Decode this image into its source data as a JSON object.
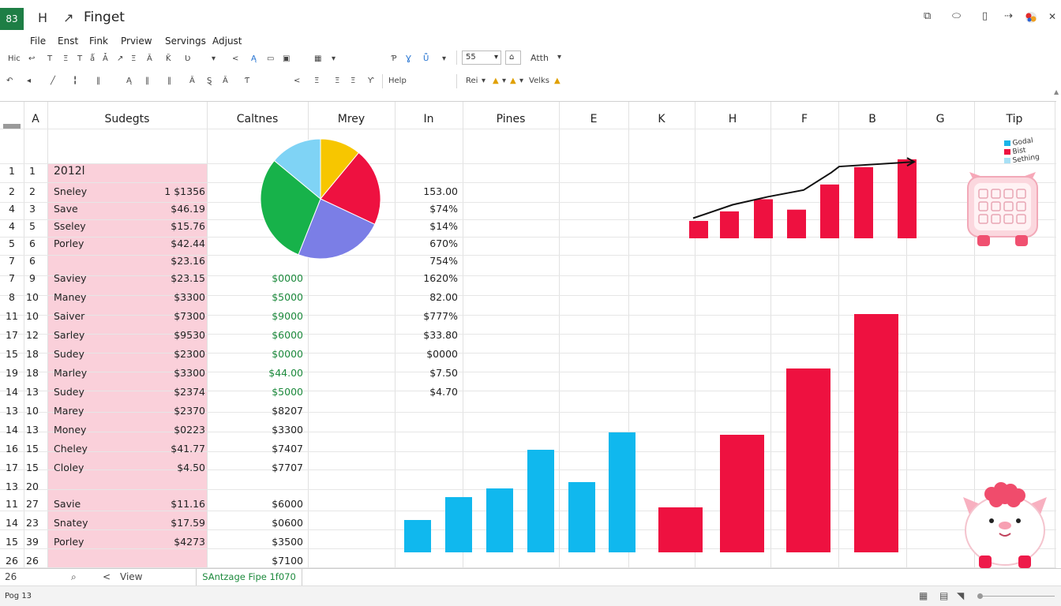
{
  "app": {
    "logo_text": "83",
    "title": "Finget"
  },
  "menu": [
    "File",
    "Enst",
    "Fink",
    "Prview",
    "Servings",
    "Adjust"
  ],
  "ribbon": {
    "row1": [
      "Hic",
      "↩",
      "T",
      "Ξ",
      "T",
      "ǻ",
      "Ǡ",
      "↗",
      "Ξ",
      "Ǎ",
      "Ǩ",
      "Ʋ",
      "▾",
      "<",
      "Ą",
      "▭",
      "▣",
      "▦",
      "▾",
      "Ƥ",
      "Ɣ",
      "Ǖ",
      "▾"
    ],
    "font_size": "55",
    "row1_right": "Atth",
    "row2": [
      "↶",
      "◂",
      "╱",
      "╏",
      "‖",
      "Ą",
      "‖",
      "‖",
      "Ǎ",
      "Ȿ",
      "Ǎ",
      "Ƭ",
      "<",
      "Ξ",
      "Ξ",
      "Ξ",
      "Ƴ"
    ],
    "help_label": "Help",
    "row2_right": [
      "Rei",
      "Velks"
    ]
  },
  "columns": [
    "A",
    "Sudegts",
    "Caltnes",
    "Mrey",
    "In",
    "Pines",
    "E",
    "K",
    "H",
    "F",
    "B",
    "G",
    "Tip"
  ],
  "rows": [
    {
      "num": "1",
      "a": "1",
      "b_name": "2012l",
      "b_val": "",
      "c": "",
      "e": ""
    },
    {
      "num": "2",
      "a": "2",
      "b_name": "Sneley",
      "b_val": "1 $1356",
      "c": "",
      "e": "153.00"
    },
    {
      "num": "4",
      "a": "3",
      "b_name": "Save",
      "b_val": "$46.19",
      "c": "",
      "e": "$74%"
    },
    {
      "num": "4",
      "a": "5",
      "b_name": "Sseley",
      "b_val": "$15.76",
      "c": "",
      "e": "$14%"
    },
    {
      "num": "5",
      "a": "6",
      "b_name": "Porley",
      "b_val": "$42.44",
      "c": "",
      "e": "670%"
    },
    {
      "num": "7",
      "a": "6",
      "b_name": "",
      "b_val": "$23.16",
      "c": "",
      "e": "754%"
    },
    {
      "num": "7",
      "a": "9",
      "b_name": "Saviey",
      "b_val": "$23.15",
      "c": "$0000",
      "e": "1620%"
    },
    {
      "num": "8",
      "a": "10",
      "b_name": "Maney",
      "b_val": "$3300",
      "c": "$5000",
      "e": "82.00"
    },
    {
      "num": "11",
      "a": "10",
      "b_name": "Saiver",
      "b_val": "$7300",
      "c": "$9000",
      "e": "$777%"
    },
    {
      "num": "17",
      "a": "12",
      "b_name": "Sarley",
      "b_val": "$9530",
      "c": "$6000",
      "e": "$33.80"
    },
    {
      "num": "15",
      "a": "18",
      "b_name": "Sudey",
      "b_val": "$2300",
      "c": "$0000",
      "e": "$0000"
    },
    {
      "num": "19",
      "a": "18",
      "b_name": "Marley",
      "b_val": "$3300",
      "c": "$44.00",
      "e": "$7.50"
    },
    {
      "num": "14",
      "a": "13",
      "b_name": "Sudey",
      "b_val": "$2374",
      "c": "$5000",
      "e": "$4.70"
    },
    {
      "num": "13",
      "a": "10",
      "b_name": "Marey",
      "b_val": "$2370",
      "c": "$8207",
      "e": ""
    },
    {
      "num": "14",
      "a": "13",
      "b_name": "Money",
      "b_val": "$0223",
      "c": "$3300",
      "e": ""
    },
    {
      "num": "16",
      "a": "15",
      "b_name": "Cheley",
      "b_val": "$41.77",
      "c": "$7407",
      "e": ""
    },
    {
      "num": "17",
      "a": "15",
      "b_name": "Cloley",
      "b_val": "$4.50",
      "c": "$7707",
      "e": ""
    },
    {
      "num": "13",
      "a": "20",
      "b_name": "",
      "b_val": "",
      "c": "",
      "e": ""
    },
    {
      "num": "11",
      "a": "27",
      "b_name": "Savie",
      "b_val": "$11.16",
      "c": "$6000",
      "e": ""
    },
    {
      "num": "14",
      "a": "23",
      "b_name": "Snatey",
      "b_val": "$17.59",
      "c": "$0600",
      "e": ""
    },
    {
      "num": "15",
      "a": "39",
      "b_name": "Porley",
      "b_val": "$4273",
      "c": "$3500",
      "e": ""
    },
    {
      "num": "26",
      "a": "26",
      "b_name": "",
      "b_val": "",
      "c": "$7100",
      "e": ""
    }
  ],
  "pie": {
    "slices": [
      {
        "value": 11,
        "color": "#f7c600"
      },
      {
        "value": 21,
        "color": "#ee1140"
      },
      {
        "value": 24,
        "color": "#7b7ee6"
      },
      {
        "value": 30,
        "color": "#17b24a"
      },
      {
        "value": 14,
        "color": "#7fd3f5"
      }
    ]
  },
  "top_chart": {
    "bars": [
      20,
      31,
      45,
      33,
      62,
      82,
      91
    ],
    "line": [
      30,
      50,
      62,
      72,
      98,
      107,
      114
    ],
    "bar_color": "#ee1140",
    "legend": [
      {
        "label": "Godal",
        "color": "#1ab4e8"
      },
      {
        "label": "Bist",
        "color": "#ee1140"
      },
      {
        "label": "Sething",
        "color": "#a8e0f5"
      }
    ]
  },
  "bottom_chart": {
    "series": [
      {
        "color": "#10b8ee",
        "values": [
          41,
          70,
          81,
          130,
          89,
          152
        ]
      },
      {
        "color": "#ee1140",
        "values": [
          57,
          149,
          233,
          302
        ]
      }
    ]
  },
  "tabs": {
    "search_icon": "magnifier-icon",
    "prev": "<",
    "view": "View",
    "active": "SAntzage Fipe 1f070"
  },
  "status": {
    "text": "Pog 13"
  },
  "colors": {
    "brand": "#1e7e45",
    "band": "#fad0da",
    "positive": "#1d8a3d"
  }
}
